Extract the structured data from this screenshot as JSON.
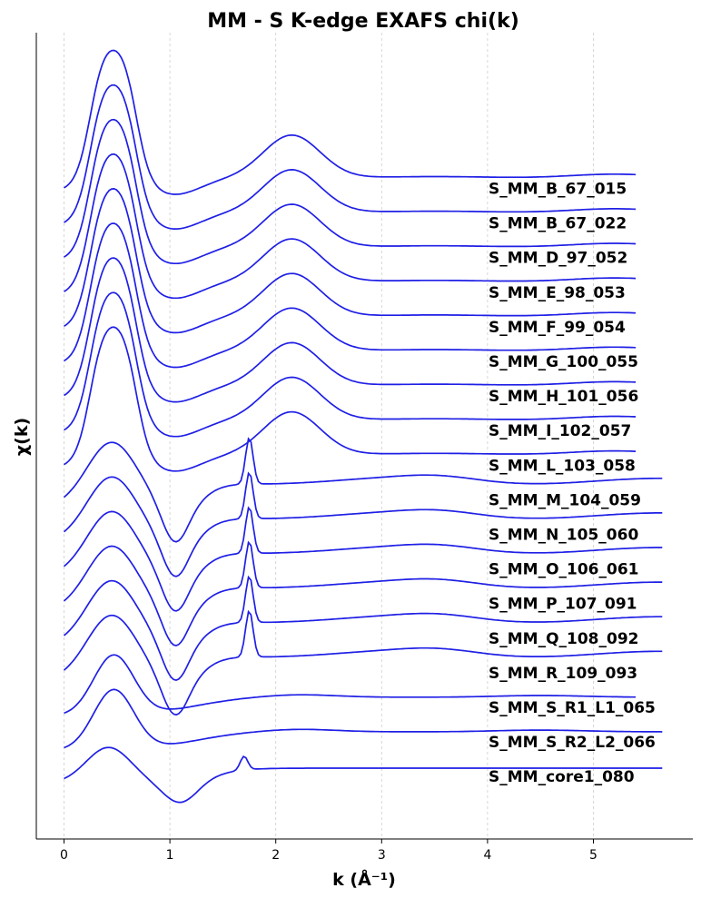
{
  "chart_data": {
    "type": "line",
    "title": "MM - S K-edge EXAFS chi(k)",
    "xlabel": "k (Å⁻¹)",
    "ylabel": "χ(k)",
    "xlim": [
      -0.27,
      5.95
    ],
    "xticks": [
      0,
      1,
      2,
      3,
      4,
      5
    ],
    "grid": "vertical dashed",
    "line_color": "#1f1fe6",
    "series": [
      {
        "name": "S_MM_B_67_015",
        "type": "A",
        "x_end": 5.4,
        "offset": 17.0
      },
      {
        "name": "S_MM_B_67_022",
        "type": "A",
        "x_end": 5.4,
        "offset": 16.0
      },
      {
        "name": "S_MM_D_97_052",
        "type": "A",
        "x_end": 5.4,
        "offset": 15.0
      },
      {
        "name": "S_MM_E_98_053",
        "type": "A",
        "x_end": 5.4,
        "offset": 14.0
      },
      {
        "name": "S_MM_F_99_054",
        "type": "A",
        "x_end": 5.4,
        "offset": 13.0
      },
      {
        "name": "S_MM_G_100_055",
        "type": "A",
        "x_end": 5.4,
        "offset": 12.0
      },
      {
        "name": "S_MM_H_101_056",
        "type": "A",
        "x_end": 5.4,
        "offset": 11.0
      },
      {
        "name": "S_MM_I_102_057",
        "type": "A",
        "x_end": 5.4,
        "offset": 10.0
      },
      {
        "name": "S_MM_L_103_058",
        "type": "A",
        "x_end": 5.4,
        "offset": 9.0
      },
      {
        "name": "S_MM_M_104_059",
        "type": "B",
        "x_end": 5.65,
        "offset": 8.0
      },
      {
        "name": "S_MM_N_105_060",
        "type": "B",
        "x_end": 5.65,
        "offset": 7.0
      },
      {
        "name": "S_MM_O_106_061",
        "type": "B",
        "x_end": 5.65,
        "offset": 6.0
      },
      {
        "name": "S_MM_P_107_091",
        "type": "B",
        "x_end": 5.65,
        "offset": 5.0
      },
      {
        "name": "S_MM_Q_108_092",
        "type": "B",
        "x_end": 5.65,
        "offset": 4.0
      },
      {
        "name": "S_MM_R_109_093",
        "type": "B",
        "x_end": 5.65,
        "offset": 3.0
      },
      {
        "name": "S_MM_S_R1_L1_065",
        "type": "C",
        "x_end": 5.4,
        "offset": 2.0
      },
      {
        "name": "S_MM_S_R2_L2_066",
        "type": "C",
        "x_end": 5.65,
        "offset": 1.0
      },
      {
        "name": "S_MM_core1_080",
        "type": "D",
        "x_end": 5.65,
        "offset": 0.0
      }
    ]
  }
}
